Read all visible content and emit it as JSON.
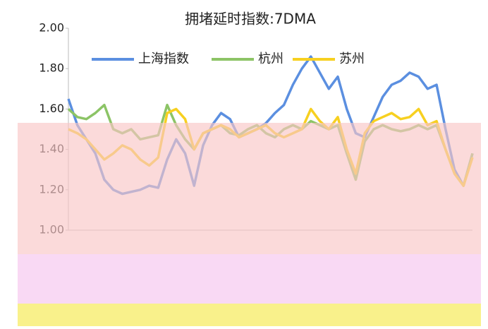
{
  "chart_data": {
    "type": "line",
    "title": "拥堵延时指数:7DMA",
    "ylim": [
      1.0,
      2.0
    ],
    "yticks": [
      {
        "value": 1.0,
        "label": "1.00"
      },
      {
        "value": 1.2,
        "label": "1.20"
      },
      {
        "value": 1.4,
        "label": "1.40"
      },
      {
        "value": 1.6,
        "label": "1.60"
      },
      {
        "value": 1.8,
        "label": "1.80"
      },
      {
        "value": 2.0,
        "label": "2.00"
      }
    ],
    "series": [
      {
        "name": "上海指数",
        "color": "#5b8fe0",
        "values": [
          1.65,
          1.52,
          1.45,
          1.38,
          1.25,
          1.2,
          1.18,
          1.19,
          1.2,
          1.22,
          1.21,
          1.35,
          1.45,
          1.38,
          1.22,
          1.42,
          1.52,
          1.58,
          1.55,
          1.46,
          1.48,
          1.5,
          1.53,
          1.58,
          1.62,
          1.72,
          1.8,
          1.86,
          1.78,
          1.7,
          1.76,
          1.6,
          1.48,
          1.46,
          1.56,
          1.66,
          1.72,
          1.74,
          1.78,
          1.76,
          1.7,
          1.72,
          1.5,
          1.3,
          1.22,
          1.38
        ]
      },
      {
        "name": "杭州",
        "color": "#8cc466",
        "values": [
          1.6,
          1.56,
          1.55,
          1.58,
          1.62,
          1.5,
          1.48,
          1.5,
          1.45,
          1.46,
          1.47,
          1.62,
          1.52,
          1.45,
          1.4,
          1.48,
          1.5,
          1.52,
          1.48,
          1.47,
          1.5,
          1.52,
          1.48,
          1.46,
          1.5,
          1.52,
          1.5,
          1.54,
          1.52,
          1.5,
          1.52,
          1.38,
          1.25,
          1.44,
          1.5,
          1.52,
          1.5,
          1.49,
          1.5,
          1.52,
          1.5,
          1.52,
          1.4,
          1.28,
          1.22,
          1.38
        ]
      },
      {
        "name": "苏州",
        "color": "#f7d020",
        "values": [
          1.5,
          1.48,
          1.45,
          1.4,
          1.35,
          1.38,
          1.42,
          1.4,
          1.35,
          1.32,
          1.36,
          1.58,
          1.6,
          1.55,
          1.4,
          1.48,
          1.5,
          1.52,
          1.5,
          1.46,
          1.48,
          1.5,
          1.52,
          1.48,
          1.46,
          1.48,
          1.5,
          1.6,
          1.54,
          1.5,
          1.56,
          1.4,
          1.28,
          1.48,
          1.54,
          1.56,
          1.58,
          1.55,
          1.56,
          1.6,
          1.52,
          1.54,
          1.4,
          1.28,
          1.22,
          1.36
        ]
      }
    ]
  }
}
